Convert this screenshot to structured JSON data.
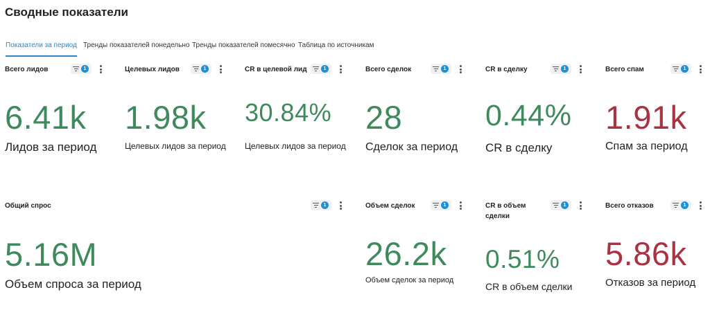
{
  "page": {
    "title": "Сводные показатели"
  },
  "tabs": [
    {
      "label": "Показатели за период",
      "active": true
    },
    {
      "label": "Тренды показателей понедельно",
      "active": false
    },
    {
      "label": "Тренды показателей помесячно",
      "active": false
    },
    {
      "label": "Таблица по источникам",
      "active": false
    }
  ],
  "colors": {
    "accent": "#2a86c8",
    "positive": "#3f8a5d",
    "negative": "#a83342",
    "badge": "#1e90d6"
  },
  "cards": {
    "total_leads": {
      "title": "Всего лидов",
      "filter_count": "1",
      "value": "6.41k",
      "subtitle": "Лидов за период"
    },
    "target_leads": {
      "title": "Целевых лидов",
      "filter_count": "1",
      "value": "1.98k",
      "subtitle": "Целевых лидов за период"
    },
    "cr_target": {
      "title": "CR в целевой лид",
      "filter_count": "1",
      "value": "30.84%",
      "subtitle": "Целевых лидов за период"
    },
    "total_deals": {
      "title": "Всего сделок",
      "filter_count": "1",
      "value": "28",
      "subtitle": "Сделок за период"
    },
    "cr_deal": {
      "title": "CR в сделку",
      "filter_count": "1",
      "value": "0.44%",
      "subtitle": "CR в сделку"
    },
    "total_spam": {
      "title": "Всего спам",
      "filter_count": "1",
      "value": "1.91k",
      "subtitle": "Спам за период"
    },
    "total_demand": {
      "title": "Общий спрос",
      "filter_count": "1",
      "value": "5.16M",
      "subtitle": "Объем спроса за период"
    },
    "deal_volume": {
      "title": "Объем сделок",
      "filter_count": "1",
      "value": "26.2k",
      "subtitle": "Объем сделок за период"
    },
    "cr_volume": {
      "title": "CR в объем сделки",
      "filter_count": "1",
      "value": "0.51%",
      "subtitle": "CR в объем сделки"
    },
    "total_rejections": {
      "title": "Всего отказов",
      "filter_count": "1",
      "value": "5.86k",
      "subtitle": "Отказов за период"
    }
  }
}
